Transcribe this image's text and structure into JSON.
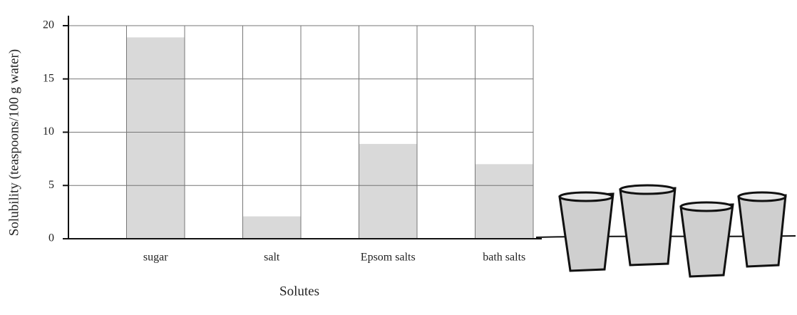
{
  "chart_data": {
    "type": "bar",
    "x_label": "Solutes",
    "y_label": "Solubility (teaspoons/100 g water)",
    "categories": [
      "sugar",
      "salt",
      "Epsom salts",
      "bath salts"
    ],
    "values": [
      18.9,
      2.1,
      8.9,
      7.0
    ],
    "color": "#d9d9d9",
    "ylim": [
      0,
      20
    ],
    "yticks": [
      0,
      5,
      10,
      15,
      20
    ],
    "grid": true
  }
}
